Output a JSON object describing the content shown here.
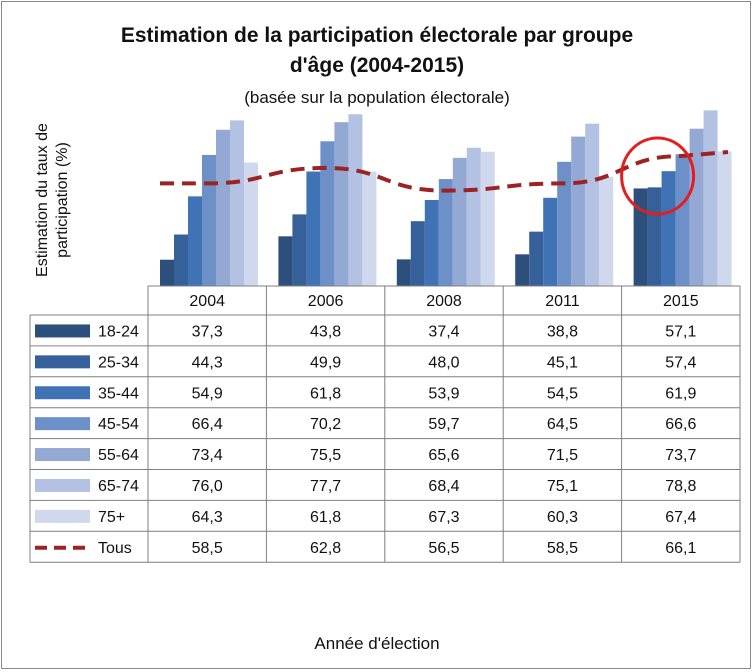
{
  "chart_data": {
    "type": "bar",
    "title_line1": "Estimation de la participation électorale par groupe",
    "title_line2": "d'âge (2004-2015)",
    "subtitle": "(basée sur la population électorale)",
    "ylabel_line1": "Estimation du taux de",
    "ylabel_line2": "participation (%)",
    "xlabel": "Année d'élection",
    "categories": [
      "2004",
      "2006",
      "2008",
      "2011",
      "2015"
    ],
    "ylim": [
      30,
      80
    ],
    "series": [
      {
        "name": "18-24",
        "color": "#2c4f7c",
        "values": [
          37.3,
          43.8,
          37.4,
          38.8,
          57.1
        ],
        "labels": [
          "37,3",
          "43,8",
          "37,4",
          "38,8",
          "57,1"
        ]
      },
      {
        "name": "25-34",
        "color": "#35609a",
        "values": [
          44.3,
          49.9,
          48.0,
          45.1,
          57.4
        ],
        "labels": [
          "44,3",
          "49,9",
          "48,0",
          "45,1",
          "57,4"
        ]
      },
      {
        "name": "35-44",
        "color": "#3f73b5",
        "values": [
          54.9,
          61.8,
          53.9,
          54.5,
          61.9
        ],
        "labels": [
          "54,9",
          "61,8",
          "53,9",
          "54,5",
          "61,9"
        ]
      },
      {
        "name": "45-54",
        "color": "#6d90c8",
        "values": [
          66.4,
          70.2,
          59.7,
          64.5,
          66.6
        ],
        "labels": [
          "66,4",
          "70,2",
          "59,7",
          "64,5",
          "66,6"
        ]
      },
      {
        "name": "55-64",
        "color": "#94a8d4",
        "values": [
          73.4,
          75.5,
          65.6,
          71.5,
          73.7
        ],
        "labels": [
          "73,4",
          "75,5",
          "65,6",
          "71,5",
          "73,7"
        ]
      },
      {
        "name": "65-74",
        "color": "#b3c2e3",
        "values": [
          76.0,
          77.7,
          68.4,
          75.1,
          78.8
        ],
        "labels": [
          "76,0",
          "77,7",
          "68,4",
          "75,1",
          "78,8"
        ]
      },
      {
        "name": "75+",
        "color": "#cfd8ec",
        "values": [
          64.3,
          61.8,
          67.3,
          60.3,
          67.4
        ],
        "labels": [
          "64,3",
          "61,8",
          "67,3",
          "60,3",
          "67,4"
        ]
      },
      {
        "name": "Tous",
        "color": "#9b2323",
        "line": true,
        "dashed": true,
        "values": [
          58.5,
          62.8,
          56.5,
          58.5,
          66.1
        ],
        "labels": [
          "58,5",
          "62,8",
          "56,5",
          "58,5",
          "66,1"
        ]
      }
    ],
    "legend_placement": "table-left",
    "grid": false,
    "annotation": "red-circle-highlight-2015-youngest-groups",
    "annotation_color": "#e41e1e"
  }
}
